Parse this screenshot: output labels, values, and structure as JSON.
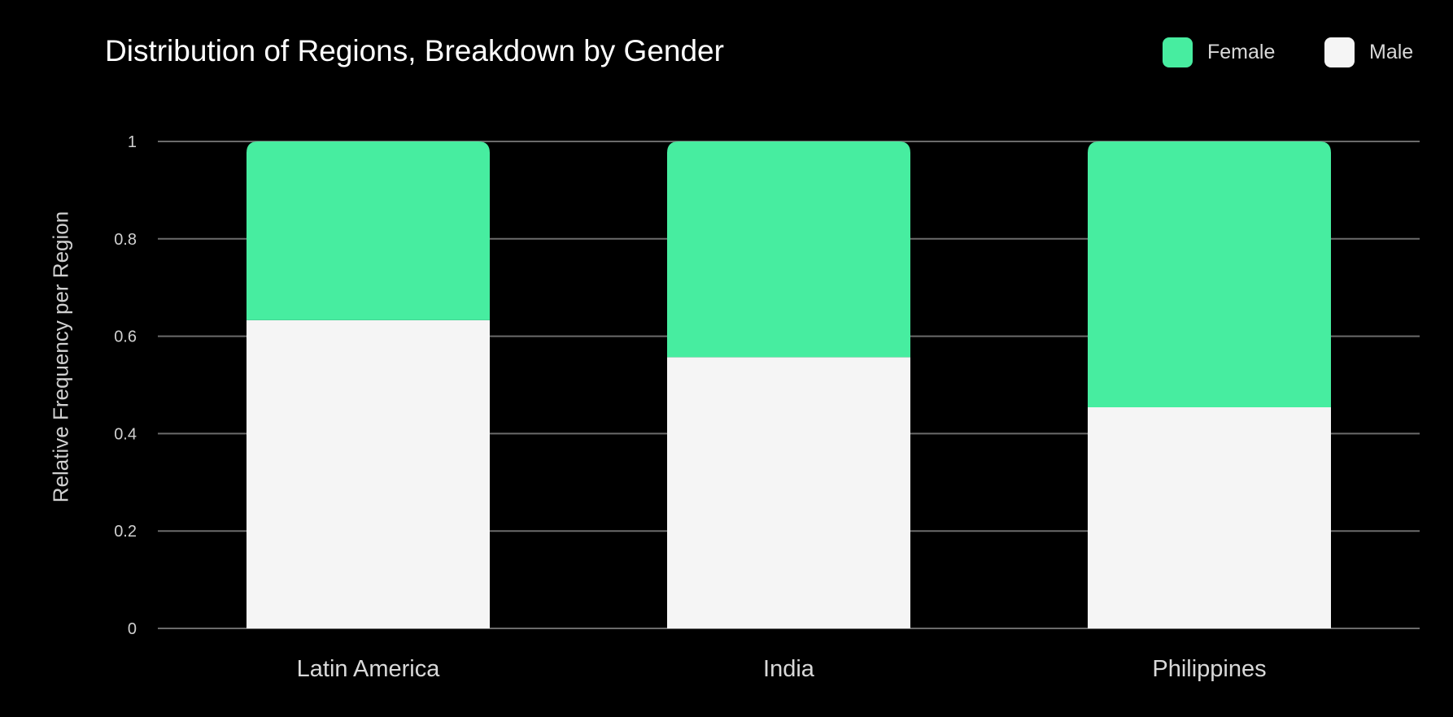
{
  "chart_data": {
    "type": "bar",
    "stacked": true,
    "title": "Distribution of Regions, Breakdown by Gender",
    "xlabel": "",
    "ylabel": "Relative Frequency per Region",
    "ylim": [
      0,
      1
    ],
    "yticks": [
      "0",
      "0.2",
      "0.4",
      "0.6",
      "0.8",
      "1"
    ],
    "grid": true,
    "legend_position": "top-right",
    "categories": [
      "Latin America",
      "India",
      "Philippines"
    ],
    "series": [
      {
        "name": "Male",
        "color": "#f5f5f5",
        "values": [
          0.633,
          0.557,
          0.454
        ]
      },
      {
        "name": "Female",
        "color": "#47eda0",
        "values": [
          0.367,
          0.443,
          0.546
        ]
      }
    ],
    "legend": [
      {
        "name": "Female",
        "color": "#47eda0"
      },
      {
        "name": "Male",
        "color": "#f5f5f5"
      }
    ]
  }
}
